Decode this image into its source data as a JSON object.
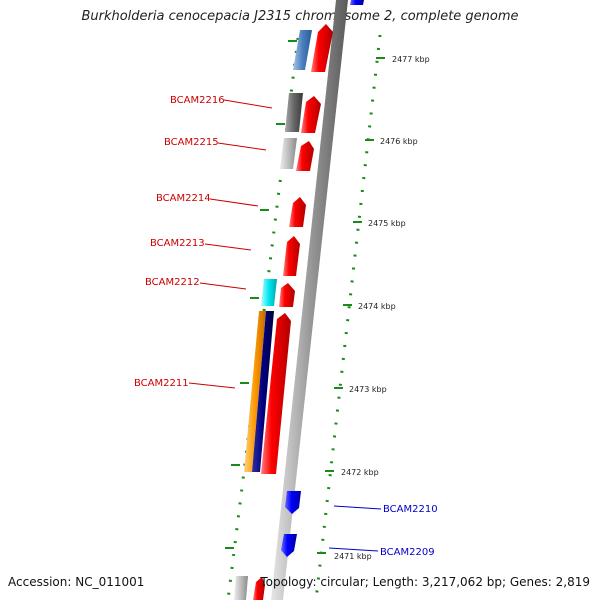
{
  "title": "Burkholderia cenocepacia J2315 chromosome 2, complete genome",
  "footer": {
    "accession": "Accession: NC_011001",
    "summary": "Topology: circular; Length: 3,217,062 bp; Genes: 2,819"
  },
  "ticks": [
    "2477 kbp",
    "2476 kbp",
    "2475 kbp",
    "2474 kbp",
    "2473 kbp",
    "2472 kbp",
    "2471 kbp"
  ],
  "gene_labels": [
    {
      "text": "BCAM2216",
      "color": "#cc0000"
    },
    {
      "text": "BCAM2215",
      "color": "#cc0000"
    },
    {
      "text": "BCAM2214",
      "color": "#cc0000"
    },
    {
      "text": "BCAM2213",
      "color": "#cc0000"
    },
    {
      "text": "BCAM2212",
      "color": "#cc0000"
    },
    {
      "text": "BCAM2211",
      "color": "#cc0000"
    },
    {
      "text": "BCAM2210",
      "color": "#0000cc"
    },
    {
      "text": "BCAM2209",
      "color": "#0000cc"
    }
  ],
  "colors": {
    "forward_cds": "#ff0000",
    "reverse_cds": "#0000ff",
    "backbone": "#8c8c8c",
    "ticks": "#1a8a1a",
    "cog_blue": "#4a7fc0",
    "cog_gray": "#666666",
    "cog_lightgray": "#bdbdbd",
    "cog_cyan": "#00e5ee",
    "cog_orange": "#ff9900",
    "cog_navy": "#000080"
  }
}
